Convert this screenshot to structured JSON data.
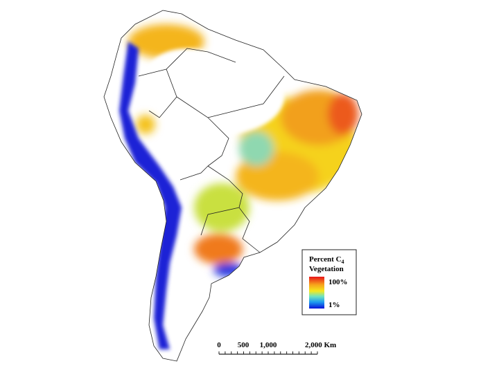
{
  "legend": {
    "title": "Percent C",
    "title_subscript": "4",
    "title_line2": "Vegetation",
    "max_label": "100%",
    "min_label": "1%"
  },
  "scale_bar": {
    "labels": [
      "0",
      "500",
      "1,000",
      "2,000 Km"
    ]
  }
}
